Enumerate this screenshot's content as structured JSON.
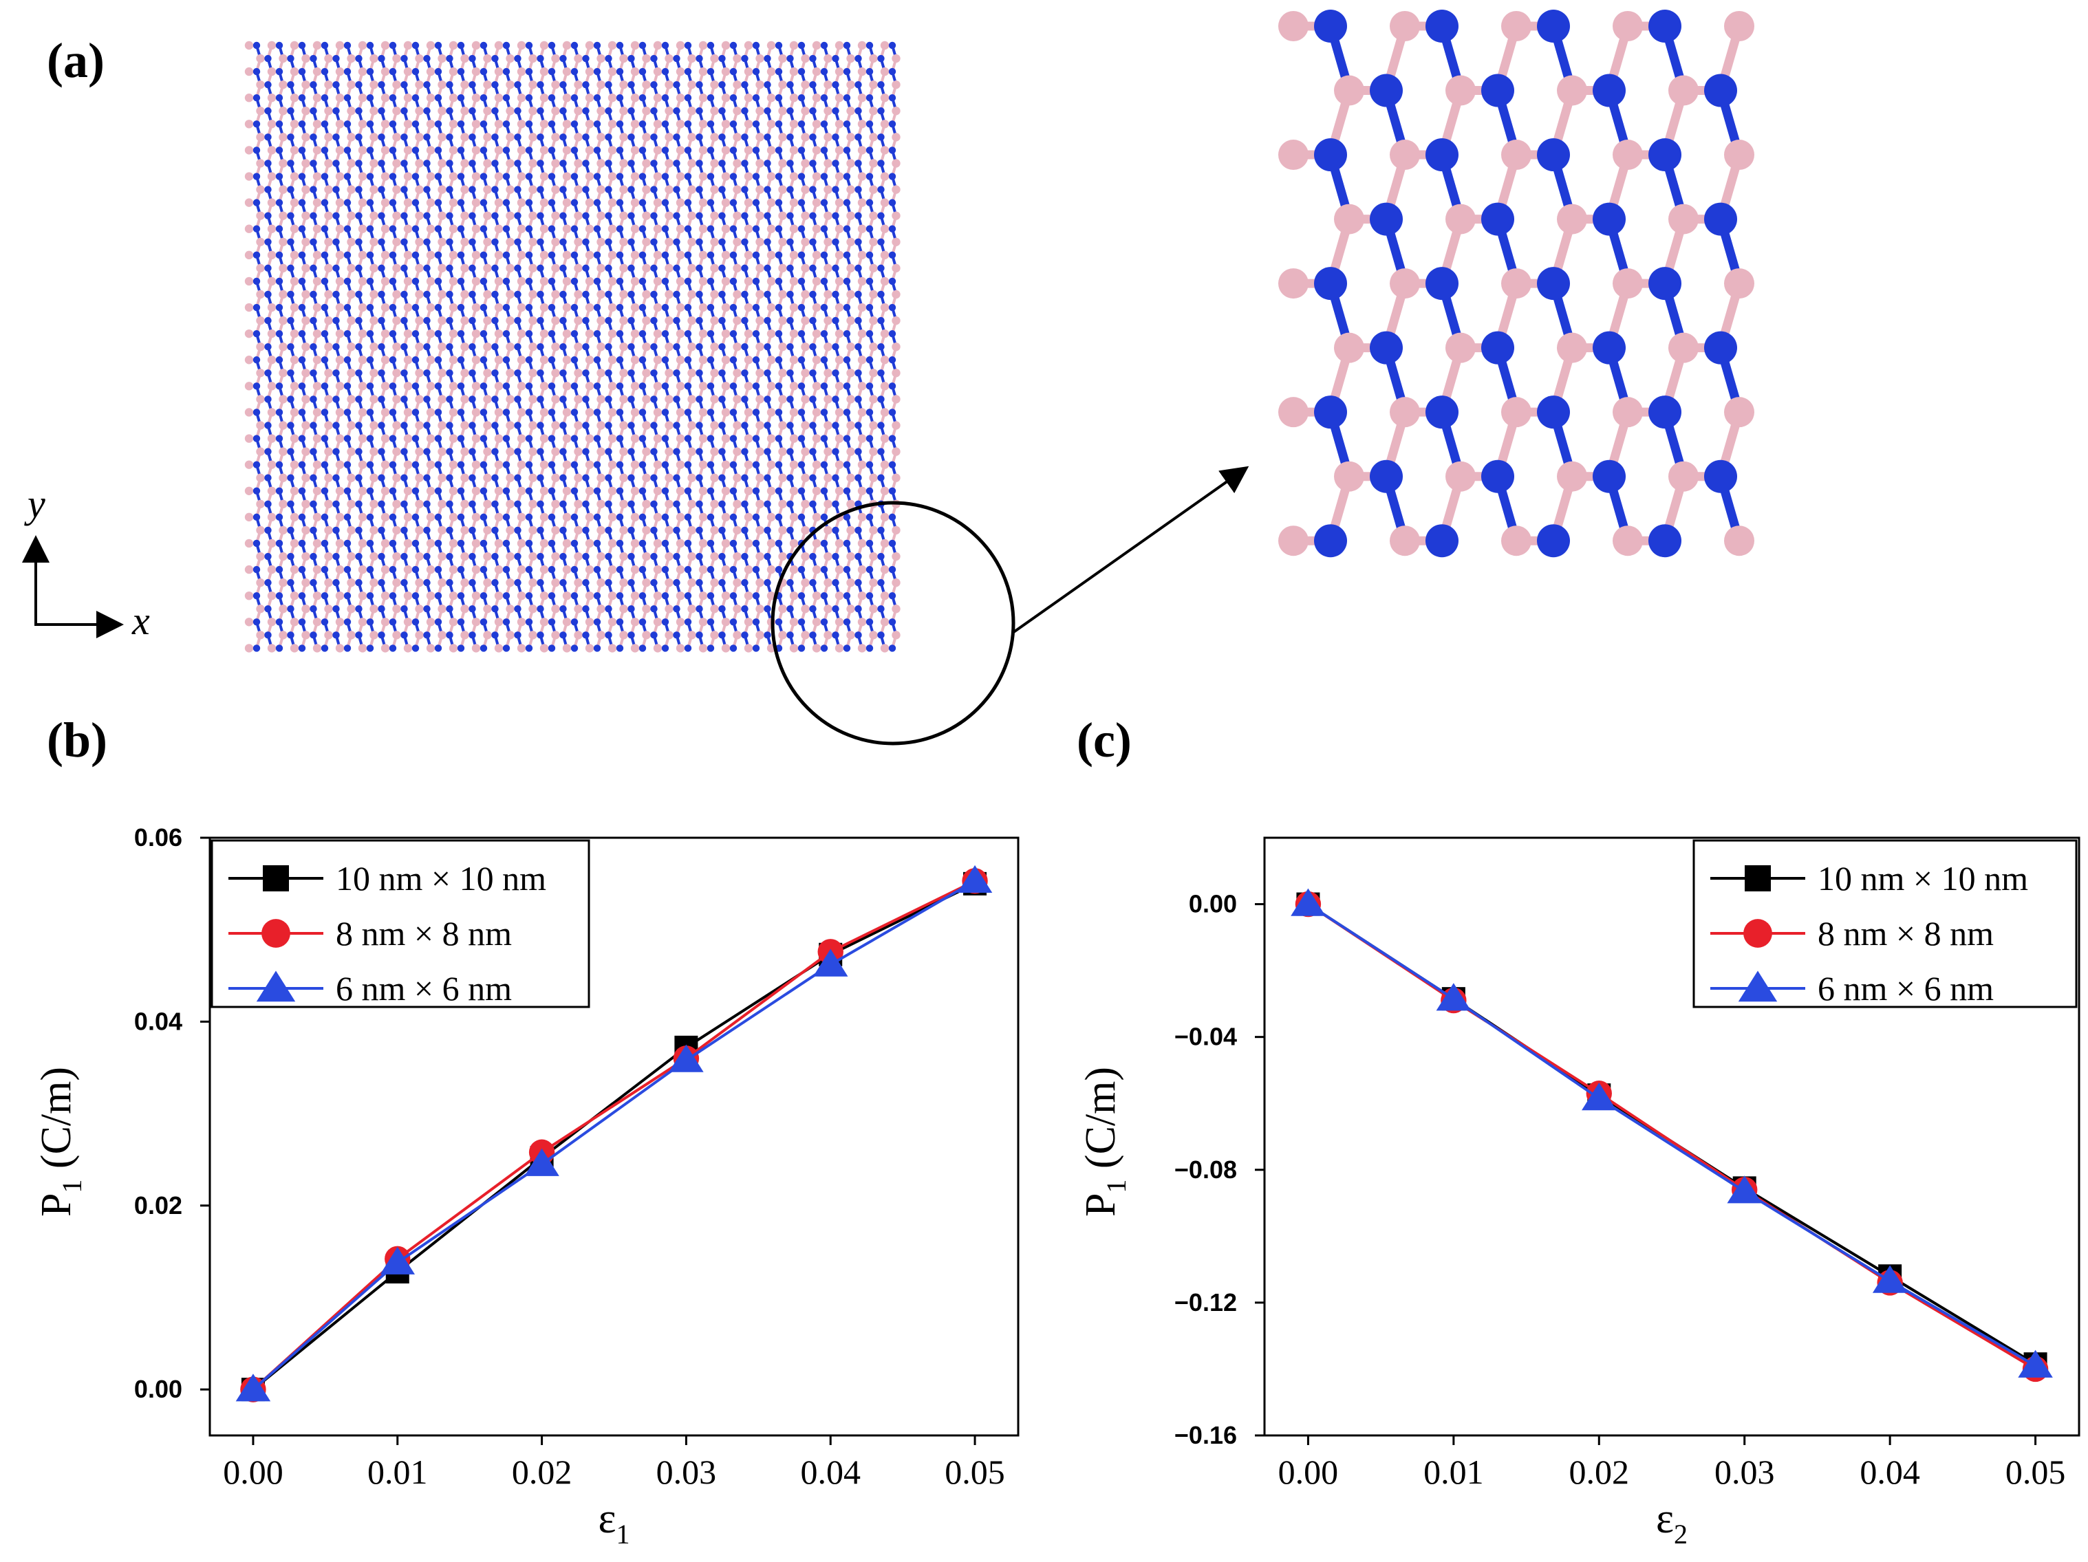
{
  "panels": {
    "a": {
      "label": "(a)"
    },
    "b": {
      "label": "(b)"
    },
    "c": {
      "label": "(c)"
    }
  },
  "axes_indicator": {
    "x": "x",
    "y": "y"
  },
  "colors": {
    "boron": "#e8b4c0",
    "nitrogen": "#1f3bd6",
    "bond_boron": "#e8b4c0",
    "bond_nitrogen": "#1f3bd6"
  },
  "chart_data": [
    {
      "type": "line",
      "panel": "(b)",
      "xlabel": "ε",
      "xlabel_sub": "1",
      "ylabel": "P",
      "ylabel_sub": "1",
      "ylabel_unit": " (C/m)",
      "xlim": [
        -0.003,
        0.053
      ],
      "ylim": [
        -0.005,
        0.06
      ],
      "x_ticks": [
        0.0,
        0.01,
        0.02,
        0.03,
        0.04,
        0.05
      ],
      "x_tick_labels": [
        "0.00",
        "0.01",
        "0.02",
        "0.03",
        "0.04",
        "0.05"
      ],
      "y_ticks": [
        0.0,
        0.02,
        0.04,
        0.06
      ],
      "y_tick_labels": [
        "0.00",
        "0.02",
        "0.04",
        "0.06"
      ],
      "legend_position": "top-left",
      "x": [
        0.0,
        0.01,
        0.02,
        0.03,
        0.04,
        0.05
      ],
      "series": [
        {
          "name": "10 nm × 10 nm",
          "color": "#000000",
          "marker": "square",
          "values": [
            0.0,
            0.0128,
            0.0252,
            0.0372,
            0.0473,
            0.055
          ]
        },
        {
          "name": "8 nm × 8 nm",
          "color": "#e8202a",
          "marker": "circle",
          "values": [
            0.0,
            0.0142,
            0.0258,
            0.036,
            0.0476,
            0.0553
          ]
        },
        {
          "name": "6 nm × 6 nm",
          "color": "#2a4be0",
          "marker": "triangle",
          "values": [
            0.0,
            0.0138,
            0.0245,
            0.0358,
            0.0462,
            0.0553
          ]
        }
      ]
    },
    {
      "type": "line",
      "panel": "(c)",
      "xlabel": "ε",
      "xlabel_sub": "2",
      "ylabel": "P",
      "ylabel_sub": "1",
      "ylabel_unit": " (C/m)",
      "xlim": [
        -0.003,
        0.053
      ],
      "ylim": [
        -0.16,
        0.02
      ],
      "x_ticks": [
        0.0,
        0.01,
        0.02,
        0.03,
        0.04,
        0.05
      ],
      "x_tick_labels": [
        "0.00",
        "0.01",
        "0.02",
        "0.03",
        "0.04",
        "0.05"
      ],
      "y_ticks": [
        0.0,
        -0.04,
        -0.08,
        -0.12,
        -0.16
      ],
      "y_tick_labels": [
        "0.00",
        "−0.04",
        "−0.08",
        "−0.12",
        "−0.16"
      ],
      "legend_position": "top-right",
      "x": [
        0.0,
        0.01,
        0.02,
        0.03,
        0.04,
        0.05
      ],
      "series": [
        {
          "name": "10 nm × 10 nm",
          "color": "#000000",
          "marker": "square",
          "values": [
            0.0,
            -0.0285,
            -0.0575,
            -0.0855,
            -0.112,
            -0.1385
          ]
        },
        {
          "name": "8 nm × 8 nm",
          "color": "#e8202a",
          "marker": "circle",
          "values": [
            0.0,
            -0.029,
            -0.057,
            -0.086,
            -0.114,
            -0.14
          ]
        },
        {
          "name": "6 nm × 6 nm",
          "color": "#2a4be0",
          "marker": "triangle",
          "values": [
            0.0,
            -0.0285,
            -0.0585,
            -0.0865,
            -0.1135,
            -0.139
          ]
        }
      ]
    }
  ]
}
